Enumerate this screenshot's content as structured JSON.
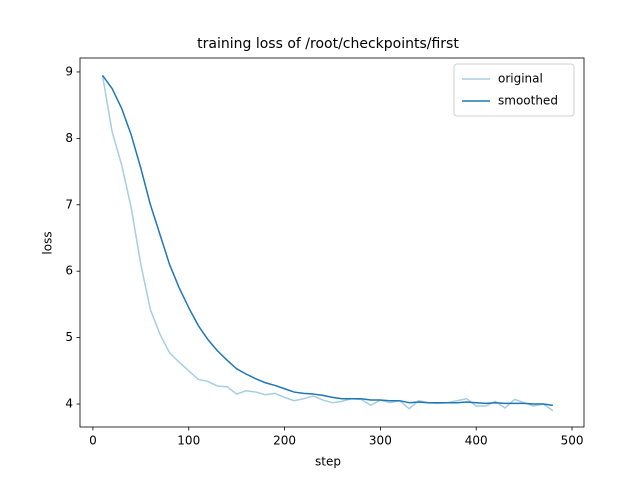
{
  "chart_data": {
    "type": "line",
    "title": "training loss of /root/checkpoints/first",
    "x_label": "step",
    "y_label": "loss",
    "x": [
      10,
      20,
      30,
      40,
      50,
      60,
      70,
      80,
      90,
      100,
      110,
      120,
      130,
      140,
      150,
      160,
      170,
      180,
      190,
      200,
      210,
      220,
      230,
      240,
      250,
      260,
      270,
      280,
      290,
      300,
      310,
      320,
      330,
      340,
      350,
      360,
      370,
      380,
      390,
      400,
      410,
      420,
      430,
      440,
      450,
      460,
      470,
      480
    ],
    "series": [
      {
        "name": "original",
        "color": "#a6cee3",
        "values": [
          8.95,
          8.1,
          7.6,
          6.95,
          6.1,
          5.42,
          5.05,
          4.77,
          4.63,
          4.5,
          4.37,
          4.34,
          4.27,
          4.26,
          4.15,
          4.2,
          4.18,
          4.14,
          4.16,
          4.1,
          4.05,
          4.08,
          4.12,
          4.06,
          4.02,
          4.04,
          4.08,
          4.07,
          3.98,
          4.06,
          4.02,
          4.05,
          3.93,
          4.05,
          4.02,
          4.01,
          4.02,
          4.05,
          4.08,
          3.97,
          3.97,
          4.04,
          3.94,
          4.07,
          4.02,
          3.97,
          4.0,
          3.9
        ]
      },
      {
        "name": "smoothed",
        "color": "#1f78b4",
        "values": [
          8.95,
          8.75,
          8.45,
          8.05,
          7.55,
          7.0,
          6.55,
          6.1,
          5.75,
          5.45,
          5.18,
          4.97,
          4.8,
          4.66,
          4.53,
          4.45,
          4.38,
          4.32,
          4.28,
          4.23,
          4.18,
          4.16,
          4.15,
          4.13,
          4.1,
          4.08,
          4.08,
          4.08,
          4.06,
          4.06,
          4.05,
          4.05,
          4.02,
          4.03,
          4.02,
          4.02,
          4.02,
          4.02,
          4.03,
          4.02,
          4.01,
          4.02,
          4.01,
          4.01,
          4.01,
          4.0,
          4.0,
          3.98
        ]
      }
    ],
    "xlim": [
      -13.5,
      512.5
    ],
    "ylim": [
      3.654,
      9.21
    ],
    "xticks": [
      0,
      100,
      200,
      300,
      400,
      500
    ],
    "yticks": [
      4,
      5,
      6,
      7,
      8,
      9
    ],
    "grid": false,
    "legend": "upper right"
  }
}
